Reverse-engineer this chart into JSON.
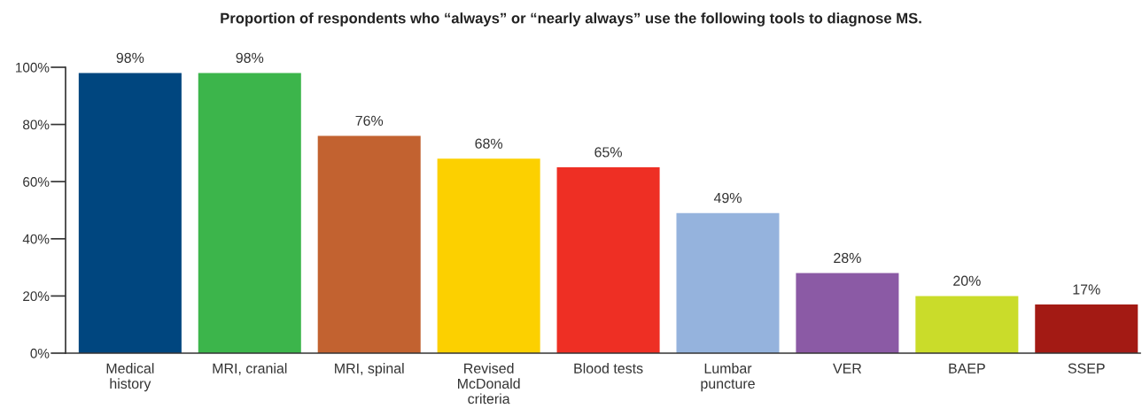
{
  "chart_data": {
    "type": "bar",
    "title": "Proportion of respondents who “always” or “nearly always” use the following tools to diagnose MS.",
    "categories": [
      "Medical\nhistory",
      "MRI, cranial",
      "MRI, spinal",
      "Revised\nMcDonald\ncriteria",
      "Blood tests",
      "Lumbar\npuncture",
      "VER",
      "BAEP",
      "SSEP"
    ],
    "values": [
      98,
      98,
      76,
      68,
      65,
      49,
      28,
      20,
      17
    ],
    "colors": [
      "#00467f",
      "#3cb54b",
      "#c26230",
      "#fcd000",
      "#ee2f24",
      "#95b3dd",
      "#8b5aa5",
      "#cadc2a",
      "#a31a14"
    ],
    "value_labels": [
      "98%",
      "98%",
      "76%",
      "68%",
      "65%",
      "49%",
      "28%",
      "20%",
      "17%"
    ],
    "ylim": [
      0,
      100
    ],
    "yticks": [
      {
        "value": 0,
        "label": "0%"
      },
      {
        "value": 20,
        "label": "20%"
      },
      {
        "value": 40,
        "label": "40%"
      },
      {
        "value": 60,
        "label": "60%"
      },
      {
        "value": 80,
        "label": "80%"
      },
      {
        "value": 100,
        "label": "100%"
      }
    ],
    "grid": false,
    "legend": false
  }
}
